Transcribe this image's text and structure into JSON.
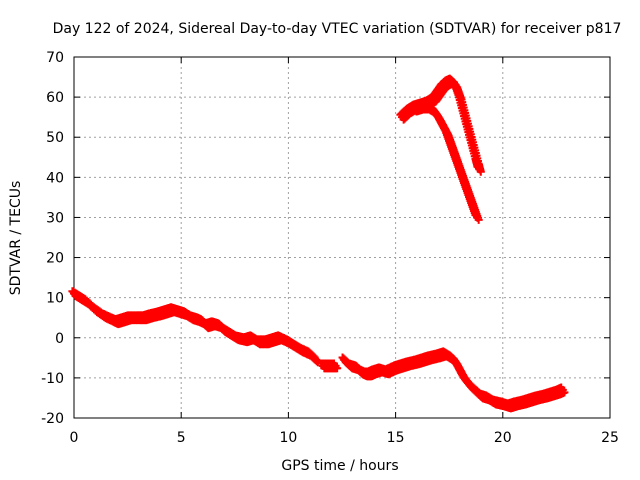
{
  "chart_data": {
    "type": "scatter",
    "title": "Day 122 of 2024, Sidereal Day-to-day VTEC variation (SDTVAR) for receiver p817",
    "xlabel": "GPS time / hours",
    "ylabel": "SDTVAR / TECUs",
    "xlim": [
      0,
      25
    ],
    "ylim": [
      -20,
      70
    ],
    "xticks": [
      0,
      5,
      10,
      15,
      20,
      25
    ],
    "yticks": [
      -20,
      -10,
      0,
      10,
      20,
      30,
      40,
      50,
      60,
      70
    ],
    "grid": true,
    "marker": "+",
    "color": "#ff0000",
    "series": [
      {
        "name": "main-trace",
        "x": [
          0.0,
          0.3,
          0.6,
          1.0,
          1.4,
          1.8,
          2.0,
          2.3,
          2.6,
          3.0,
          3.3,
          3.6,
          4.0,
          4.3,
          4.6,
          4.9,
          5.2,
          5.5,
          5.8,
          6.0,
          6.2,
          6.5,
          6.8,
          7.0,
          7.3,
          7.6,
          8.0,
          8.3,
          8.6,
          9.0,
          9.3,
          9.6,
          10.0,
          10.3,
          10.6,
          11.0,
          11.3
        ],
        "y": [
          11,
          10,
          9,
          7,
          5.5,
          4.5,
          4,
          4.5,
          5,
          5,
          5,
          5.5,
          6,
          6.5,
          7,
          6.5,
          6,
          5,
          4.5,
          4,
          3,
          3.5,
          3,
          2,
          1,
          0,
          -0.5,
          0,
          -1,
          -1,
          -0.5,
          0,
          -1,
          -2,
          -3,
          -4,
          -5.5
        ]
      },
      {
        "name": "segment-11-12",
        "x": [
          11.6,
          11.8,
          12.0,
          12.2
        ],
        "y": [
          -7,
          -7,
          -7,
          -7
        ]
      },
      {
        "name": "segment-12.6-15",
        "x": [
          12.6,
          12.9,
          13.2,
          13.4,
          13.6,
          13.8,
          14.0,
          14.3,
          14.6,
          15.0
        ],
        "y": [
          -5.5,
          -7,
          -7.5,
          -8.5,
          -9,
          -9,
          -8.5,
          -8,
          -8.5,
          -7.5
        ]
      },
      {
        "name": "segment-15-23",
        "x": [
          15.0,
          15.3,
          15.6,
          16.0,
          16.3,
          16.6,
          17.0,
          17.3,
          17.6,
          17.8,
          18.0,
          18.2,
          18.5,
          18.8,
          19.0,
          19.3,
          19.6,
          20.0,
          20.3,
          20.6,
          21.0,
          21.3,
          21.6,
          22.0,
          22.3,
          22.6,
          22.8
        ],
        "y": [
          -7.5,
          -7,
          -6.5,
          -6,
          -5.5,
          -5,
          -4.5,
          -4,
          -5,
          -6,
          -8,
          -10,
          -12,
          -13.5,
          -14.5,
          -15,
          -16,
          -16.5,
          -17,
          -16.5,
          -16,
          -15.5,
          -15,
          -14.5,
          -14,
          -13.5,
          -13
        ]
      },
      {
        "name": "upper-arc-a",
        "x": [
          15.3,
          15.6,
          15.9,
          16.2,
          16.5,
          16.8,
          17.0,
          17.2,
          17.4,
          17.6,
          17.8,
          18.0,
          18.2,
          18.4,
          18.6,
          18.8,
          18.9
        ],
        "y": [
          55,
          56.5,
          57.5,
          58,
          58.5,
          59.5,
          61,
          62.5,
          63.5,
          64,
          63,
          60,
          56,
          52,
          48,
          44,
          42
        ]
      },
      {
        "name": "upper-arc-b",
        "x": [
          15.9,
          16.2,
          16.5,
          16.8,
          17.0,
          17.2,
          17.4,
          17.6,
          17.8,
          18.0,
          18.2,
          18.4,
          18.6,
          18.8
        ],
        "y": [
          57,
          57.5,
          57.5,
          56.5,
          55,
          53,
          51,
          48,
          45,
          42,
          39,
          36,
          33,
          30
        ]
      }
    ]
  }
}
